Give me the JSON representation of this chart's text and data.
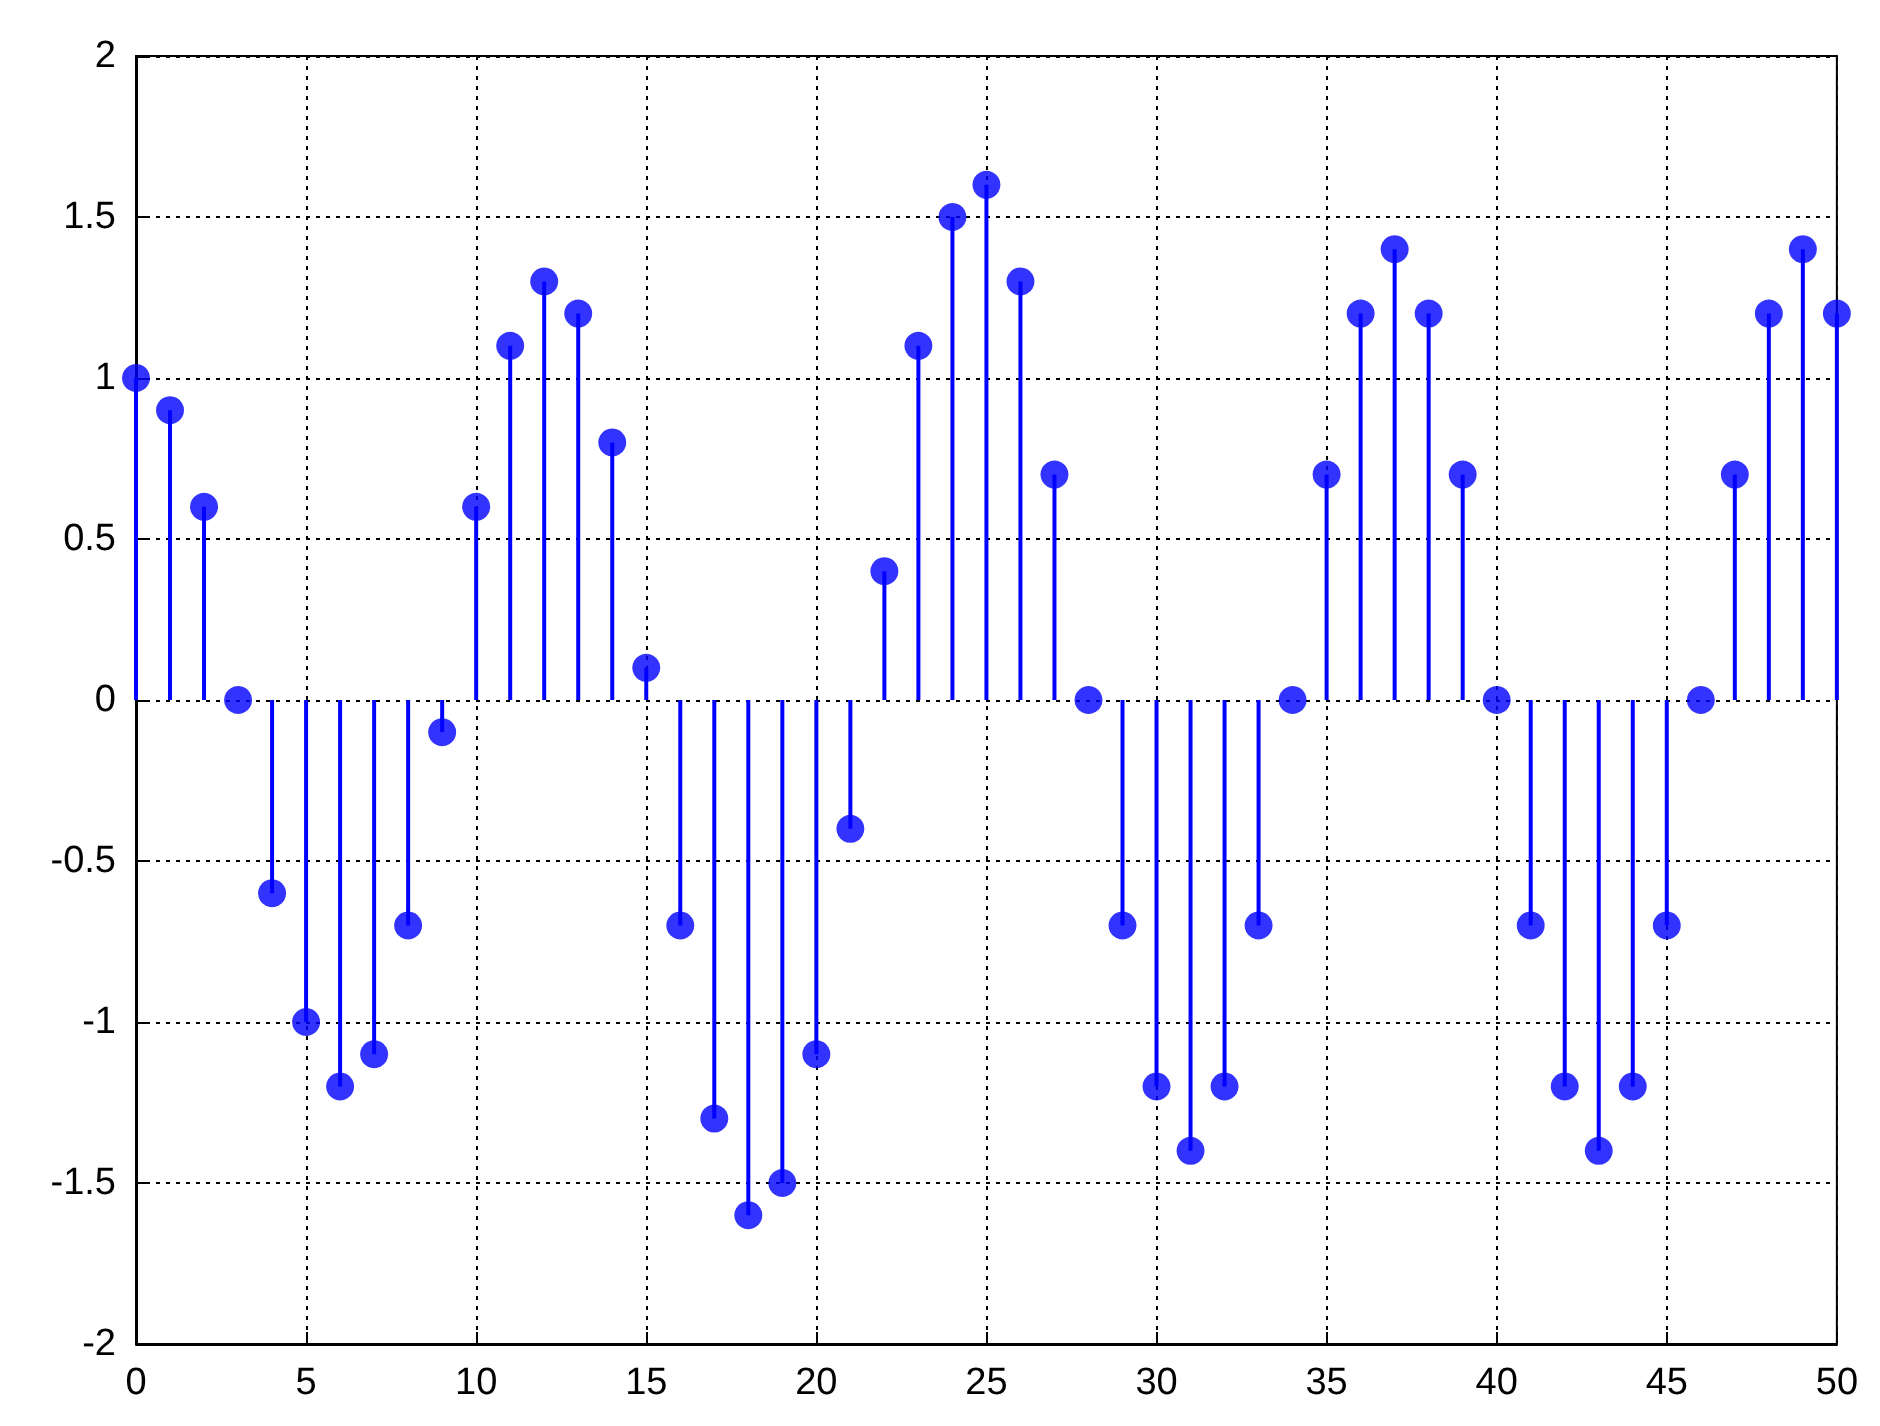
{
  "chart_data": {
    "type": "lollipop",
    "x": [
      0,
      1,
      2,
      3,
      4,
      5,
      6,
      7,
      8,
      9,
      10,
      11,
      12,
      13,
      14,
      15,
      16,
      17,
      18,
      19,
      20,
      21,
      22,
      23,
      24,
      25,
      26,
      27,
      28,
      29,
      30,
      31,
      32,
      33,
      34,
      35,
      36,
      37,
      38,
      39,
      40,
      41,
      42,
      43,
      44,
      45,
      46,
      47,
      48,
      49,
      50
    ],
    "values": [
      1.0,
      0.9,
      0.6,
      0,
      -0.6,
      -1.0,
      -1.2,
      -1.1,
      -0.7,
      -0.1,
      0.6,
      1.1,
      1.3,
      1.2,
      0.8,
      0.1,
      -0.7,
      -1.3,
      -1.6,
      -1.5,
      -1.1,
      -0.4,
      0.4,
      1.1,
      1.5,
      1.6,
      1.3,
      0.7,
      0,
      -0.7,
      -1.2,
      -1.4,
      -1.2,
      -0.7,
      0,
      0.7,
      1.2,
      1.4,
      1.2,
      0.7,
      0,
      -0.7,
      -1.2,
      -1.4,
      -1.2,
      -0.7,
      0,
      0.7,
      1.2,
      1.4,
      1.2
    ],
    "color": "#0000ff",
    "marker": "circle",
    "xlim": [
      0,
      50
    ],
    "xticks": [
      0,
      5,
      10,
      15,
      20,
      25,
      30,
      35,
      40,
      45,
      50
    ],
    "ylim": [
      -2,
      2
    ],
    "yticks": [
      -2,
      -1.5,
      -1,
      -0.5,
      0,
      0.5,
      1,
      1.5,
      2
    ],
    "grid": true
  }
}
